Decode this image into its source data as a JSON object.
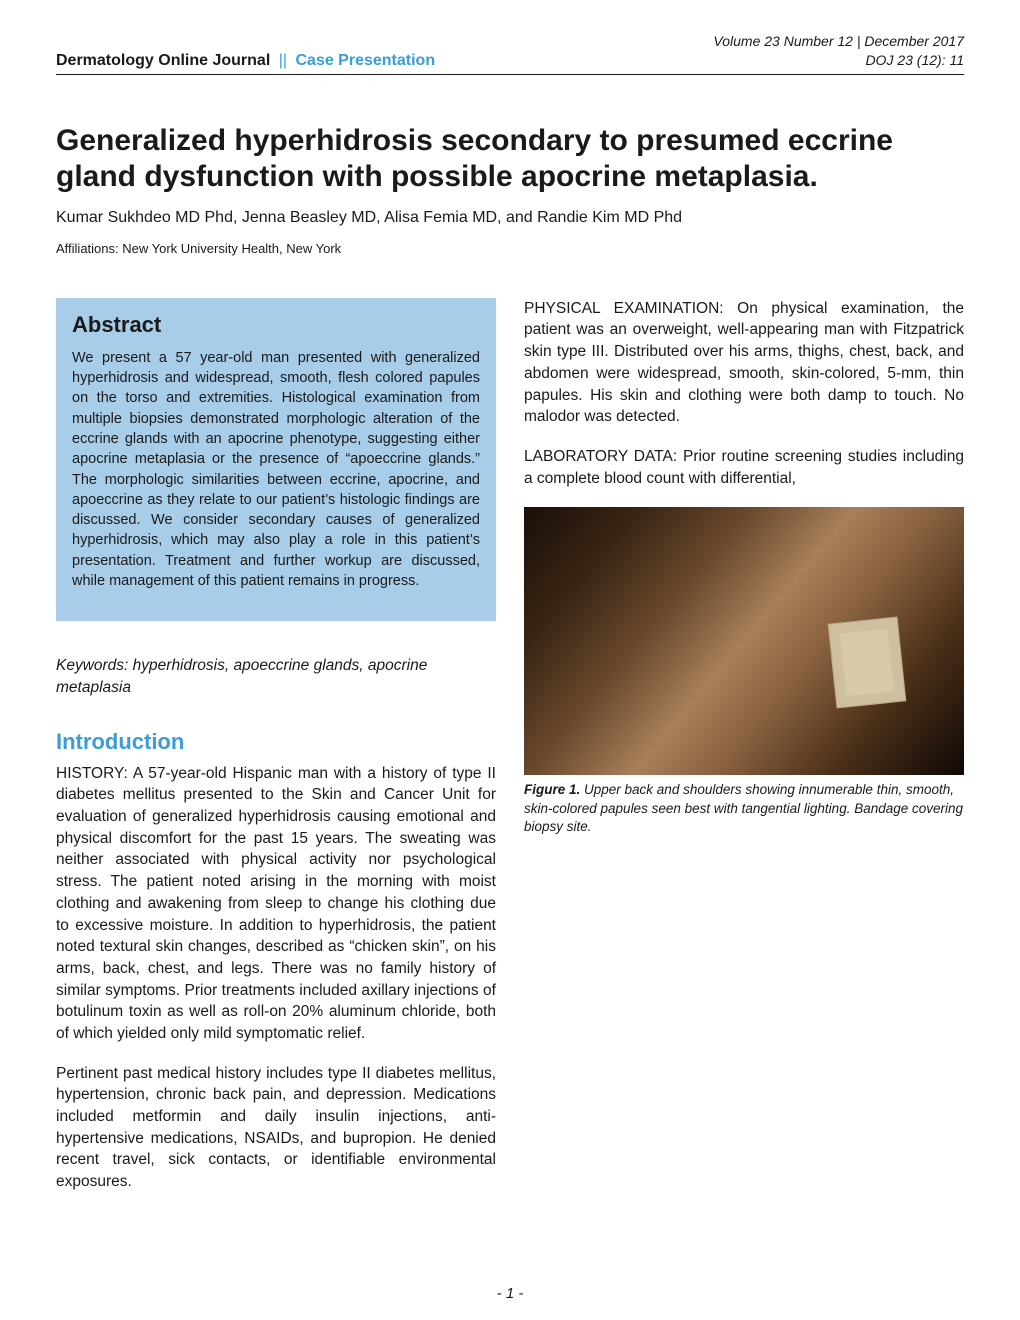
{
  "header": {
    "journal": "Dermatology Online Journal",
    "separator": "||",
    "section": "Case Presentation",
    "volume_line": "Volume 23 Number 12 | December 2017",
    "doj_line": "DOJ 23 (12): 11"
  },
  "title": "Generalized hyperhidrosis secondary to presumed eccrine gland dysfunction with possible apocrine metaplasia.",
  "authors": "Kumar Sukhdeo MD Phd, Jenna Beasley MD, Alisa Femia MD, and Randie Kim MD Phd",
  "affiliations": "Affiliations: New York University Health, New York",
  "abstract": {
    "heading": "Abstract",
    "text": "We present a 57 year-old man presented with generalized hyperhidrosis and widespread, smooth, flesh colored papules on the torso and extremities. Histological examination from multiple biopsies demonstrated morphologic alteration of the eccrine glands with an apocrine phenotype, suggesting either apocrine metaplasia or the presence of “apoeccrine glands.” The morphologic similarities between eccrine, apocrine, and apoeccrine as they relate to our patient’s histologic findings are discussed. We consider secondary causes of generalized hyperhidrosis, which may also play a role in this patient’s presentation. Treatment and further workup are discussed, while management of this patient remains in progress."
  },
  "keywords": "Keywords: hyperhidrosis, apoeccrine glands, apocrine metaplasia",
  "introduction": {
    "heading": "Introduction",
    "para1": "HISTORY: A 57-year-old Hispanic man with a history of type II diabetes mellitus presented to the Skin and Cancer Unit for evaluation of generalized hyperhidrosis causing emotional and physical discomfort for the past 15 years. The sweating was neither associated with physical activity nor psychological stress. The patient noted arising in the morning with moist clothing and awakening from sleep to change his clothing due to excessive moisture. In addition to hyperhidrosis, the patient noted textural skin changes, described as “chicken skin”, on his arms, back, chest, and legs. There was no family history of similar symptoms. Prior treatments included axillary injections of botulinum toxin as well as roll-on 20% aluminum chloride, both of which yielded only mild symptomatic relief.",
    "para2": "Pertinent past medical history includes type II diabetes mellitus, hypertension, chronic back pain, and depression. Medications included metformin and daily insulin injections, anti-hypertensive medications, NSAIDs, and bupropion. He denied recent travel, sick contacts, or identifiable environmental exposures.",
    "para3": "PHYSICAL EXAMINATION: On physical examination, the patient was an overweight, well-appearing man with Fitzpatrick skin type III. Distributed over his arms, thighs, chest, back, and abdomen were widespread, smooth, skin-colored, 5-mm, thin papules. His skin and clothing were both damp to touch. No malodor was detected.",
    "para4": "LABORATORY DATA: Prior routine screening studies including a complete blood count with differential,"
  },
  "figure1": {
    "label": "Figure 1.",
    "caption": " Upper back and shoulders showing innumerable thin, smooth, skin-colored papules seen best with tangential lighting. Bandage covering biopsy site."
  },
  "page_number": "- 1 -",
  "colors": {
    "accent": "#3b9cd9",
    "abstract_bg": "#a7cde8",
    "text": "#1a1a1a"
  }
}
